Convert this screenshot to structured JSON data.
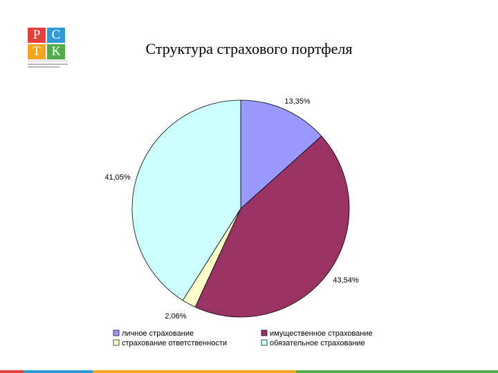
{
  "logo": {
    "letters": [
      "Р",
      "С",
      "Т",
      "К"
    ],
    "colors": [
      "#e2413b",
      "#2f9bd6",
      "#f3a51f",
      "#4fae4a"
    ]
  },
  "footer_colors": [
    "#e2413b",
    "#2f9bd6",
    "#f3a51f",
    "#4fae4a"
  ],
  "chart_data": {
    "type": "pie",
    "title": "Структура страхового портфеля",
    "start_angle_deg": 0,
    "direction": "clockwise",
    "slices": [
      {
        "name": "личное страхование",
        "value": 13.35,
        "label": "13,35%",
        "color": "#9999ff"
      },
      {
        "name": "имущественное страхование",
        "value": 43.54,
        "label": "43,54%",
        "color": "#993366"
      },
      {
        "name": "страхование ответственности",
        "value": 2.06,
        "label": "2,06%",
        "color": "#ffffcc"
      },
      {
        "name": "обязательное страхование",
        "value": 41.05,
        "label": "41,05%",
        "color": "#ccffff"
      }
    ],
    "legend_position": "bottom"
  }
}
